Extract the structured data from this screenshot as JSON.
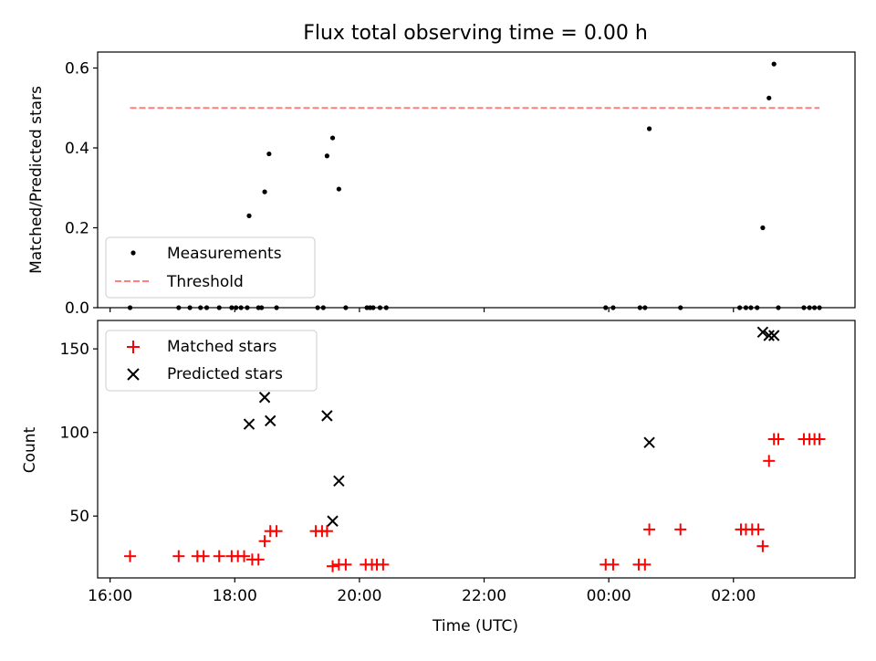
{
  "chart_data": [
    {
      "type": "scatter",
      "title": "Flux total observing time = 0.00 h",
      "xlabel": "",
      "ylabel": "Matched/Predicted stars",
      "xlim": [
        15.8,
        27.95
      ],
      "ylim": [
        0,
        0.64
      ],
      "x_tick_values": [
        16,
        18,
        20,
        22,
        24,
        26
      ],
      "y_ticks": [
        "0.0",
        "0.2",
        "0.4",
        "0.6"
      ],
      "y_tick_values": [
        0,
        0.2,
        0.4,
        0.6
      ],
      "legend_position": "lower left",
      "grid": false,
      "series": [
        {
          "name": "Measurements",
          "marker": "dot",
          "color": "#000000",
          "points": [
            [
              16.32,
              0
            ],
            [
              17.1,
              0
            ],
            [
              17.28,
              0
            ],
            [
              17.45,
              0
            ],
            [
              17.55,
              0
            ],
            [
              17.75,
              0
            ],
            [
              17.95,
              0
            ],
            [
              18.02,
              0
            ],
            [
              18.1,
              0
            ],
            [
              18.2,
              0
            ],
            [
              18.23,
              0.23
            ],
            [
              18.38,
              0
            ],
            [
              18.43,
              0
            ],
            [
              18.48,
              0.29
            ],
            [
              18.55,
              0.385
            ],
            [
              18.67,
              0
            ],
            [
              19.33,
              0
            ],
            [
              19.42,
              0
            ],
            [
              19.48,
              0.38
            ],
            [
              19.57,
              0.425
            ],
            [
              19.67,
              0.297
            ],
            [
              19.78,
              0
            ],
            [
              20.12,
              0
            ],
            [
              20.17,
              0
            ],
            [
              20.22,
              0
            ],
            [
              20.33,
              0
            ],
            [
              20.43,
              0
            ],
            [
              23.95,
              0
            ],
            [
              24.07,
              0
            ],
            [
              24.5,
              0
            ],
            [
              24.58,
              0
            ],
            [
              24.65,
              0.448
            ],
            [
              25.15,
              0
            ],
            [
              26.1,
              0
            ],
            [
              26.2,
              0
            ],
            [
              26.28,
              0
            ],
            [
              26.38,
              0
            ],
            [
              26.47,
              0.2
            ],
            [
              26.57,
              0.525
            ],
            [
              26.65,
              0.61
            ],
            [
              26.72,
              0
            ],
            [
              27.13,
              0
            ],
            [
              27.22,
              0
            ],
            [
              27.3,
              0
            ],
            [
              27.38,
              0
            ]
          ]
        },
        {
          "name": "Threshold",
          "style": "dashed",
          "color": "#ff7f7f",
          "points": [
            [
              16.32,
              0.5
            ],
            [
              27.38,
              0.5
            ]
          ]
        }
      ]
    },
    {
      "type": "scatter",
      "title": "",
      "xlabel": "Time (UTC)",
      "ylabel": "Count",
      "xlim": [
        15.8,
        27.95
      ],
      "ylim": [
        13,
        167
      ],
      "x_ticks": [
        "16:00",
        "18:00",
        "20:00",
        "22:00",
        "00:00",
        "02:00"
      ],
      "x_tick_values": [
        16,
        18,
        20,
        22,
        24,
        26
      ],
      "y_ticks": [
        "50",
        "100",
        "150"
      ],
      "y_tick_values": [
        50,
        100,
        150
      ],
      "legend_position": "upper left",
      "grid": false,
      "series": [
        {
          "name": "Matched stars",
          "marker": "plus",
          "color": "#ff0000",
          "points": [
            [
              16.32,
              26
            ],
            [
              17.1,
              26
            ],
            [
              17.4,
              26
            ],
            [
              17.5,
              26
            ],
            [
              17.75,
              26
            ],
            [
              17.95,
              26
            ],
            [
              18.05,
              26
            ],
            [
              18.15,
              26
            ],
            [
              18.28,
              24
            ],
            [
              18.38,
              24
            ],
            [
              18.48,
              35
            ],
            [
              18.57,
              41
            ],
            [
              18.67,
              41
            ],
            [
              19.3,
              41
            ],
            [
              19.4,
              41
            ],
            [
              19.48,
              41
            ],
            [
              19.57,
              20
            ],
            [
              19.67,
              21
            ],
            [
              19.78,
              21
            ],
            [
              20.1,
              21
            ],
            [
              20.2,
              21
            ],
            [
              20.28,
              21
            ],
            [
              20.38,
              21
            ],
            [
              23.95,
              21
            ],
            [
              24.07,
              21
            ],
            [
              24.48,
              21
            ],
            [
              24.58,
              21
            ],
            [
              24.65,
              42
            ],
            [
              25.15,
              42
            ],
            [
              26.12,
              42
            ],
            [
              26.2,
              42
            ],
            [
              26.3,
              42
            ],
            [
              26.4,
              42
            ],
            [
              26.47,
              32
            ],
            [
              26.57,
              83
            ],
            [
              26.65,
              96
            ],
            [
              26.72,
              96
            ],
            [
              27.13,
              96
            ],
            [
              27.22,
              96
            ],
            [
              27.3,
              96
            ],
            [
              27.38,
              96
            ]
          ]
        },
        {
          "name": "Predicted stars",
          "marker": "x",
          "color": "#000000",
          "points": [
            [
              18.23,
              105
            ],
            [
              18.48,
              121
            ],
            [
              18.57,
              107
            ],
            [
              19.48,
              110
            ],
            [
              19.57,
              47
            ],
            [
              19.67,
              71
            ],
            [
              24.65,
              94
            ],
            [
              26.47,
              160
            ],
            [
              26.57,
              158
            ],
            [
              26.65,
              158
            ]
          ]
        }
      ]
    }
  ]
}
